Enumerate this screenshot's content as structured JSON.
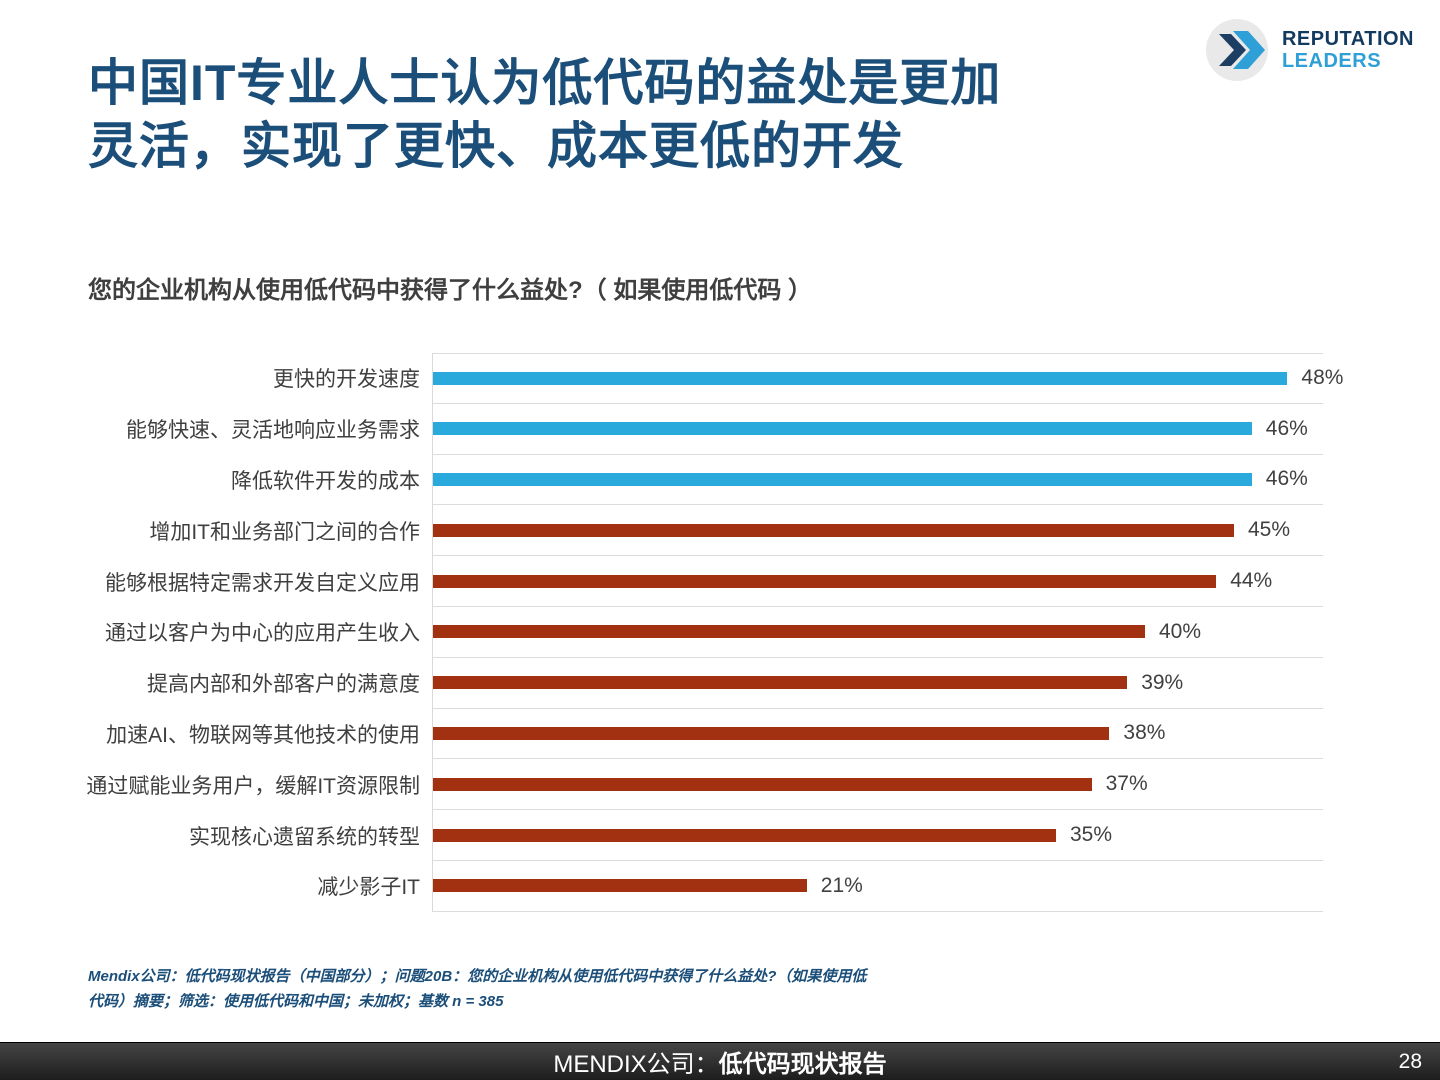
{
  "header": {
    "title_line1": "中国IT专业人士认为低代码的益处是更加",
    "title_line2": "灵活，实现了更快、成本更低的开发",
    "logo": {
      "line1": "REPUTATION",
      "line2": "LEADERS",
      "icon": "double-chevron-icon",
      "navy": "#12395E",
      "blue": "#2E9FD7"
    }
  },
  "question": "您的企业机构从使用低代码中获得了什么益处?（ 如果使用低代码 ）",
  "chart_data": {
    "type": "bar",
    "orientation": "horizontal",
    "title": "您的企业机构从使用低代码中获得了什么益处?（ 如果使用低代码 ）",
    "categories": [
      "更快的开发速度",
      "能够快速、灵活地响应业务需求",
      "降低软件开发的成本",
      "增加IT和业务部门之间的合作",
      "能够根据特定需求开发自定义应用",
      "通过以客户为中心的应用产生收入",
      "提高内部和外部客户的满意度",
      "加速AI、物联网等其他技术的使用",
      "通过赋能业务用户，缓解IT资源限制",
      "实现核心遗留系统的转型",
      "减少影子IT"
    ],
    "values": [
      48,
      46,
      46,
      45,
      44,
      40,
      39,
      38,
      37,
      35,
      21
    ],
    "value_labels": [
      "48%",
      "46%",
      "46%",
      "45%",
      "44%",
      "40%",
      "39%",
      "38%",
      "37%",
      "35%",
      "21%"
    ],
    "bar_colors": [
      "#29A9DC",
      "#29A9DC",
      "#29A9DC",
      "#A23112",
      "#A23112",
      "#A23112",
      "#A23112",
      "#A23112",
      "#A23112",
      "#A23112",
      "#A23112"
    ],
    "colors": {
      "blue": "#29A9DC",
      "red": "#A23112",
      "grid": "#DCDCDC"
    },
    "xlim": [
      0,
      50
    ],
    "grid": "row-separators",
    "legend": "none"
  },
  "footnote": {
    "line1": "Mendix公司：低代码现状报告（中国部分）；问题20B：您的企业机构从使用低代码中获得了什么益处?（如果使用低",
    "line2": "代码）摘要；筛选：使用低代码和中国；未加权；基数 n = 385"
  },
  "footer": {
    "brand_regular": "MENDIX公司：",
    "brand_bold": "低代码现状报告",
    "page_number": "28"
  }
}
